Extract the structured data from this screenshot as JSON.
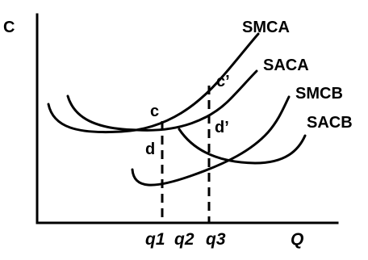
{
  "diagram": {
    "axis_labels": {
      "y": "C",
      "x": "Q"
    },
    "quantity_labels": [
      "q1",
      "q2",
      "q3"
    ],
    "curves": [
      {
        "label": "SMCA"
      },
      {
        "label": "SACA"
      },
      {
        "label": "SMCB"
      },
      {
        "label": "SACB"
      }
    ],
    "points": [
      "c",
      "c’",
      "d",
      "d’"
    ]
  }
}
